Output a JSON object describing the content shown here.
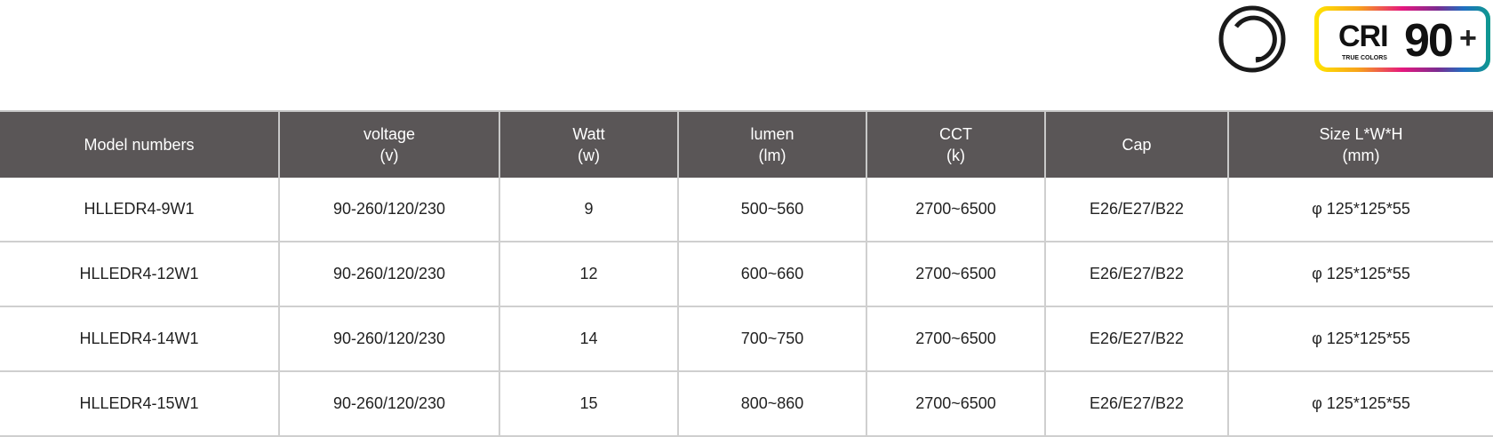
{
  "badges": {
    "cri_label": "CRI",
    "cri_value": "90",
    "cri_plus": "+",
    "cri_sub": "TRUE COLORS",
    "icon": "dimmable-circle-icon"
  },
  "colors": {
    "header_bg": "#5a5657",
    "header_text": "#ffffff"
  },
  "table": {
    "headers": [
      [
        "Model numbers",
        ""
      ],
      [
        "voltage",
        "(v)"
      ],
      [
        "Watt",
        "(w)"
      ],
      [
        "lumen",
        "(lm)"
      ],
      [
        "CCT",
        "(k)"
      ],
      [
        "Cap",
        ""
      ],
      [
        "Size L*W*H",
        "(mm)"
      ]
    ],
    "rows": [
      [
        "HLLEDR4-9W1",
        "90-260/120/230",
        "9",
        "500~560",
        "2700~6500",
        "E26/E27/B22",
        "φ 125*125*55"
      ],
      [
        "HLLEDR4-12W1",
        "90-260/120/230",
        "12",
        "600~660",
        "2700~6500",
        "E26/E27/B22",
        "φ 125*125*55"
      ],
      [
        "HLLEDR4-14W1",
        "90-260/120/230",
        "14",
        "700~750",
        "2700~6500",
        "E26/E27/B22",
        "φ 125*125*55"
      ],
      [
        "HLLEDR4-15W1",
        "90-260/120/230",
        "15",
        "800~860",
        "2700~6500",
        "E26/E27/B22",
        "φ 125*125*55"
      ]
    ]
  }
}
